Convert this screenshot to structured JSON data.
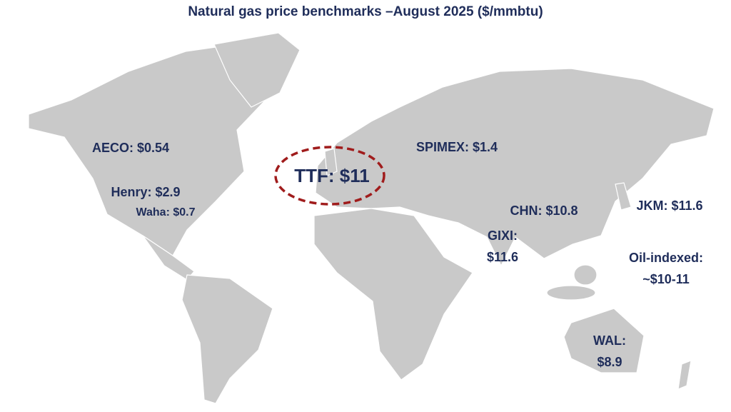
{
  "title": "Natural gas price benchmarks –August 2025 ($/mmbtu)",
  "labels": [
    {
      "lines": [
        "AECO: $0.54"
      ]
    },
    {
      "lines": [
        "Henry: $2.9"
      ]
    },
    {
      "lines": [
        "Waha: $0.7"
      ]
    },
    {
      "lines": [
        "TTF: $11"
      ]
    },
    {
      "lines": [
        "SPIMEX: $1.4"
      ]
    },
    {
      "lines": [
        "CHN: $10.8"
      ]
    },
    {
      "lines": [
        "JKM: $11.6"
      ]
    },
    {
      "lines": [
        "GIXI:",
        "$11.6"
      ]
    },
    {
      "lines": [
        "Oil-indexed:",
        "~$10-11"
      ]
    },
    {
      "lines": [
        "WAL:",
        "$8.9"
      ]
    }
  ]
}
